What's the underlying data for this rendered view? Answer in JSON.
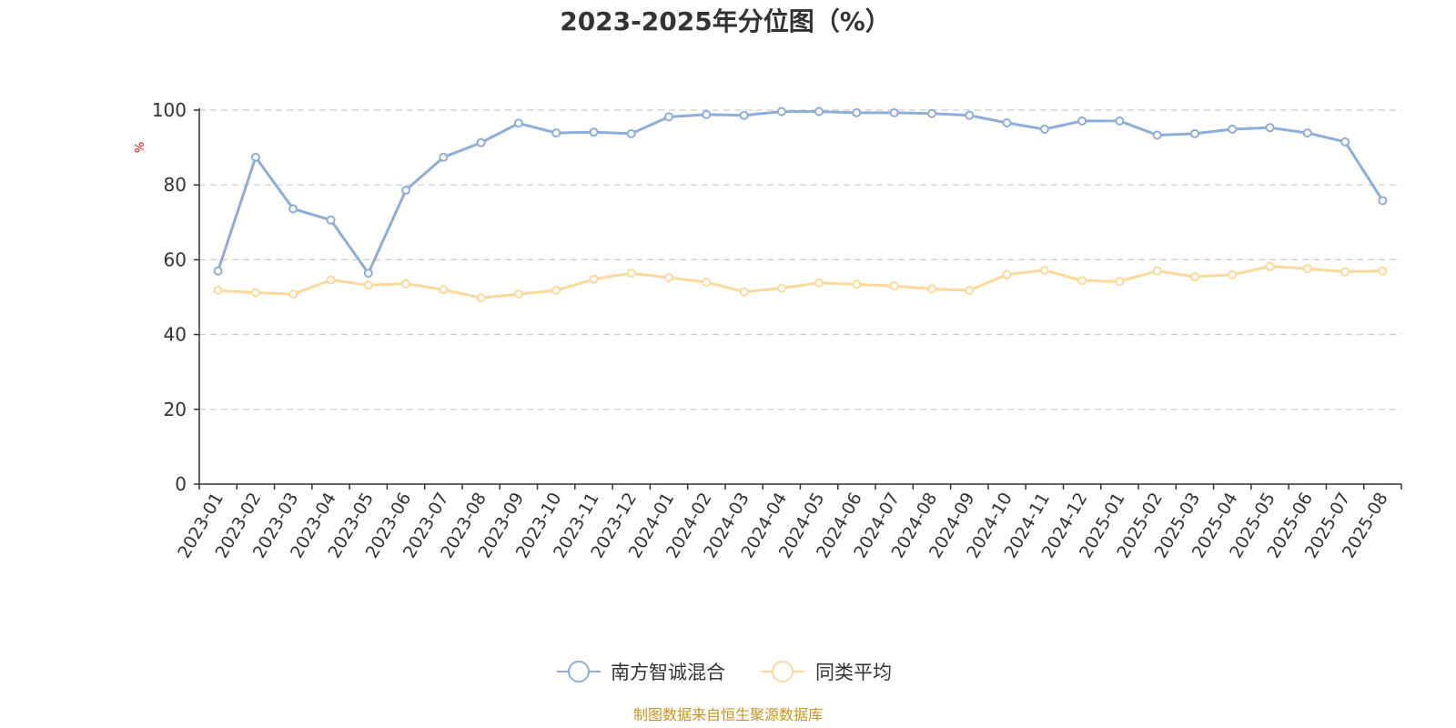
{
  "chart_data": {
    "type": "line",
    "title": "2023-2025年分位图（%）",
    "ylabel": "%",
    "ylim": [
      0,
      100
    ],
    "yticks": [
      "0",
      "20",
      "40",
      "60",
      "80",
      "100"
    ],
    "grid": true,
    "legend_position": "bottom",
    "categories": [
      "2023-01",
      "2023-02",
      "2023-03",
      "2023-04",
      "2023-05",
      "2023-06",
      "2023-07",
      "2023-08",
      "2023-09",
      "2023-10",
      "2023-11",
      "2023-12",
      "2024-01",
      "2024-02",
      "2024-03",
      "2024-04",
      "2024-05",
      "2024-06",
      "2024-07",
      "2024-08",
      "2024-09",
      "2024-10",
      "2024-11",
      "2024-12",
      "2025-01",
      "2025-02",
      "2025-03",
      "2025-04",
      "2025-05",
      "2025-06",
      "2025-07",
      "2025-08"
    ],
    "series": [
      {
        "name": "南方智诚混合",
        "color": "#8eadd9",
        "values": [
          57.0,
          87.4,
          73.6,
          70.6,
          56.4,
          78.6,
          87.4,
          91.3,
          96.5,
          93.9,
          94.1,
          93.7,
          98.2,
          98.8,
          98.6,
          99.6,
          99.6,
          99.3,
          99.3,
          99.1,
          98.6,
          96.6,
          94.9,
          97.1,
          97.1,
          93.3,
          93.7,
          94.9,
          95.3,
          93.9,
          91.5,
          75.8
        ]
      },
      {
        "name": "同类平均",
        "color": "#fcd99a",
        "values": [
          51.8,
          51.2,
          50.8,
          54.6,
          53.2,
          53.6,
          52.0,
          49.8,
          50.8,
          51.8,
          54.8,
          56.4,
          55.2,
          54.0,
          51.4,
          52.4,
          53.8,
          53.4,
          53.0,
          52.2,
          51.8,
          56.0,
          57.2,
          54.4,
          54.2,
          57.0,
          55.4,
          56.0,
          58.2,
          57.6,
          56.8,
          57.0
        ]
      }
    ],
    "source_text": "制图数据来自恒生聚源数据库"
  },
  "colors": {
    "axis": "#333333",
    "grid": "#cccccc",
    "unit_label": "#ff0000",
    "source_text": "#c8941e"
  }
}
